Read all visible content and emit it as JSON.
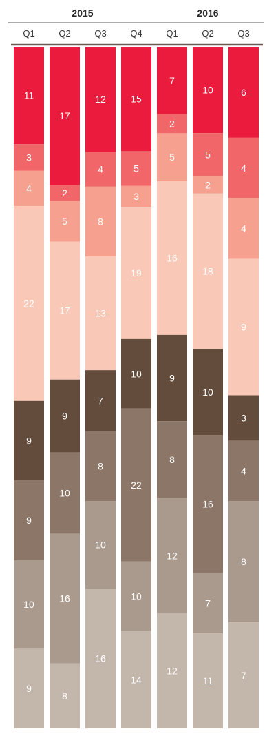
{
  "chart_data": {
    "type": "bar",
    "stacked": true,
    "normalized": true,
    "years": [
      {
        "label": "2015",
        "quarters": [
          "Q1",
          "Q2",
          "Q3",
          "Q4"
        ]
      },
      {
        "label": "2016",
        "quarters": [
          "Q1",
          "Q2",
          "Q3"
        ]
      }
    ],
    "categories": [
      "Q1",
      "Q2",
      "Q3",
      "Q4",
      "Q1",
      "Q2",
      "Q3"
    ],
    "series": [
      {
        "color": "#ea1b3c",
        "text_color": "#ffffff",
        "values": [
          11,
          17,
          12,
          15,
          7,
          10,
          6
        ]
      },
      {
        "color": "#f16668",
        "text_color": "#ffffff",
        "values": [
          3,
          2,
          4,
          5,
          2,
          5,
          4
        ]
      },
      {
        "color": "#f6a18f",
        "text_color": "#ffffff",
        "values": [
          4,
          5,
          8,
          3,
          5,
          2,
          4
        ]
      },
      {
        "color": "#fac8b7",
        "text_color": "#ffffff",
        "values": [
          22,
          17,
          13,
          19,
          16,
          18,
          9
        ]
      },
      {
        "color": "#644c3c",
        "text_color": "#ffffff",
        "values": [
          9,
          9,
          7,
          10,
          9,
          10,
          3
        ]
      },
      {
        "color": "#8b7667",
        "text_color": "#ffffff",
        "values": [
          9,
          10,
          8,
          22,
          8,
          16,
          4
        ]
      },
      {
        "color": "#a99a8d",
        "text_color": "#ffffff",
        "values": [
          10,
          16,
          10,
          10,
          12,
          7,
          8
        ]
      },
      {
        "color": "#c3b6aa",
        "text_color": "#ffffff",
        "values": [
          9,
          8,
          16,
          14,
          12,
          11,
          7
        ]
      }
    ],
    "ylim": [
      0,
      100
    ]
  }
}
